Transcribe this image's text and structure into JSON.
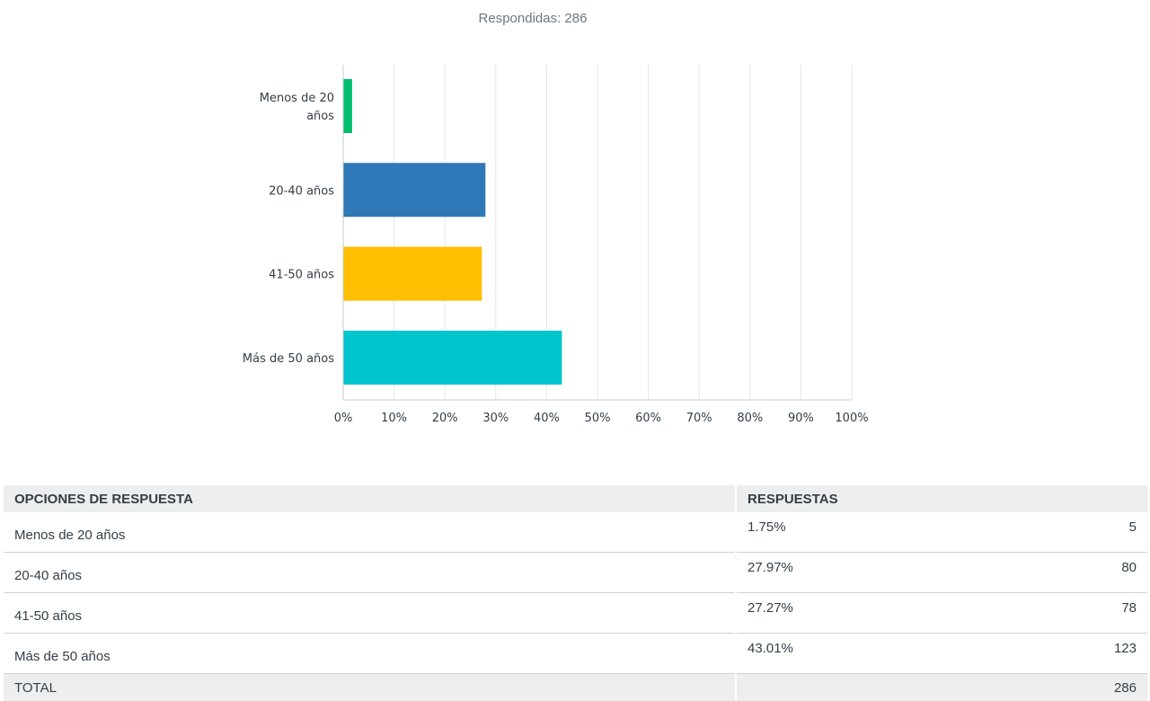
{
  "answered_label": "Respondidas: 286",
  "chart_data": {
    "type": "bar",
    "orientation": "horizontal",
    "categories": [
      "Menos de 20 años",
      "20-40 años",
      "41-50 años",
      "Más de 50 años"
    ],
    "category_labels": [
      [
        "Menos de 20",
        "años"
      ],
      [
        "20-40 años"
      ],
      [
        "41-50 años"
      ],
      [
        "Más de 50 años"
      ]
    ],
    "values": [
      1.75,
      27.97,
      27.27,
      43.01
    ],
    "colors": [
      "#00bf6f",
      "#2e78b7",
      "#ffbf00",
      "#00c5cf"
    ],
    "xlim": [
      0,
      100
    ],
    "xticks": [
      "0%",
      "10%",
      "20%",
      "30%",
      "40%",
      "50%",
      "60%",
      "70%",
      "80%",
      "90%",
      "100%"
    ],
    "grid": true,
    "title": "",
    "xlabel": "",
    "ylabel": ""
  },
  "table": {
    "headers": [
      "OPCIONES DE RESPUESTA",
      "RESPUESTAS"
    ],
    "rows": [
      {
        "option": "Menos de 20 años",
        "percent": "1.75%",
        "count": "5"
      },
      {
        "option": "20-40 años",
        "percent": "27.97%",
        "count": "80"
      },
      {
        "option": "41-50 años",
        "percent": "27.27%",
        "count": "78"
      },
      {
        "option": "Más de 50 años",
        "percent": "43.01%",
        "count": "123"
      }
    ],
    "total_label": "TOTAL",
    "total_count": "286"
  }
}
